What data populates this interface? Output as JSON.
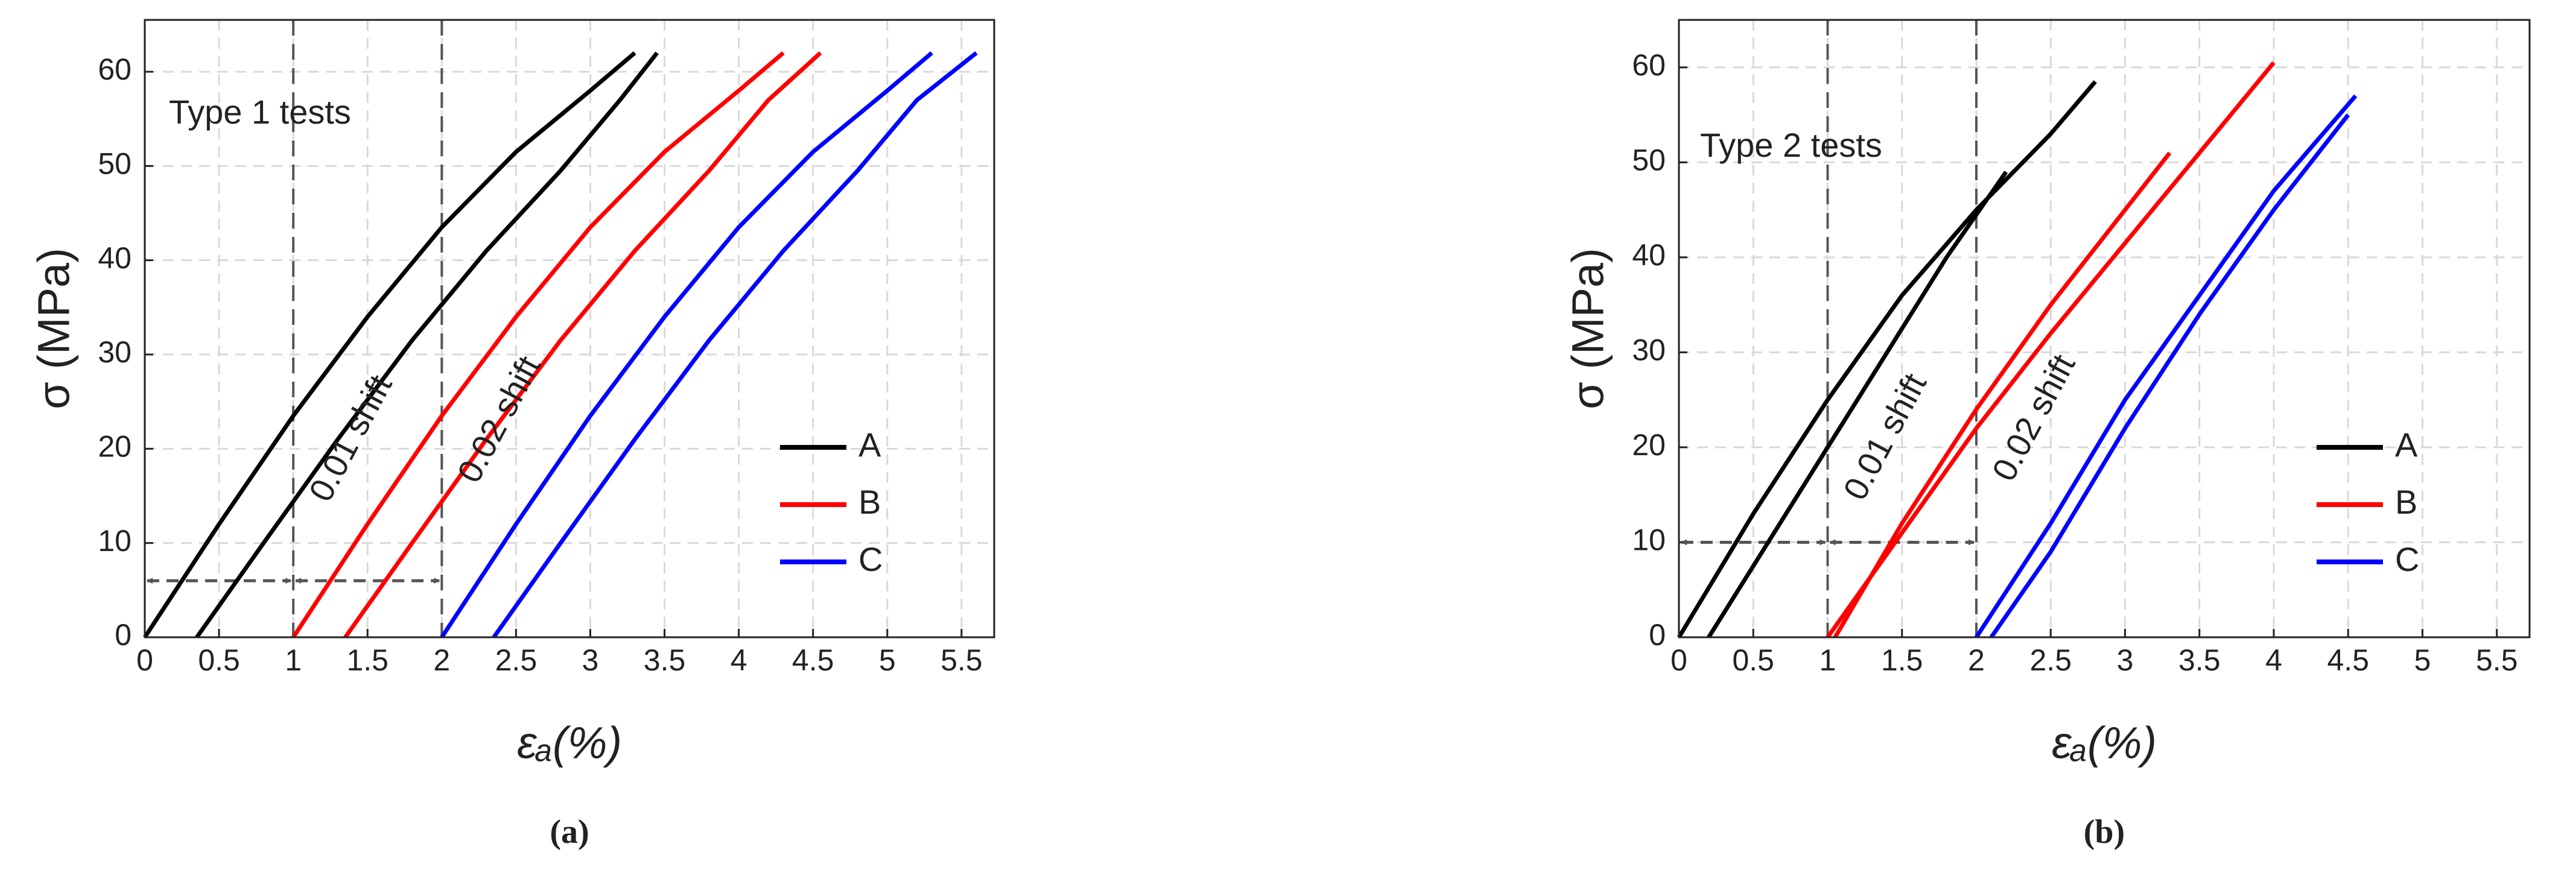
{
  "chart_data": [
    {
      "type": "line",
      "annotation": "Type 1 tests",
      "shift_labels": [
        "0.01 shift",
        "0.02 shift"
      ],
      "xlabel": "εₐ(%)",
      "ylabel": "σ (MPa)",
      "caption": "(a)",
      "xlim": [
        0,
        5.72
      ],
      "ylim": [
        0,
        65.5
      ],
      "xticks": [
        0,
        0.5,
        1,
        1.5,
        2,
        2.5,
        3,
        3.5,
        4,
        4.5,
        5,
        5.5
      ],
      "yticks": [
        0,
        10,
        20,
        30,
        40,
        50,
        60
      ],
      "grid": true,
      "vlines": [
        1,
        2
      ],
      "arrow_y": 6,
      "series": [
        {
          "name": "A",
          "color": "#000000",
          "x": [
            0,
            0.5,
            1,
            1.5,
            2,
            2.5,
            3,
            3.3,
            null,
            0.35,
            0.8,
            1.3,
            1.8,
            2.3,
            2.8,
            3.2,
            3.45
          ],
          "values": [
            0,
            12,
            23.5,
            34,
            43.5,
            51.5,
            58,
            62,
            null,
            0,
            10,
            21,
            31.5,
            41,
            49.5,
            57,
            62
          ]
        },
        {
          "name": "B",
          "color": "#ff0000",
          "x": [
            1,
            1.5,
            2,
            2.5,
            3,
            3.5,
            4,
            4.3,
            null,
            1.35,
            1.8,
            2.3,
            2.8,
            3.3,
            3.8,
            4.2,
            4.55
          ],
          "values": [
            0,
            12,
            23.5,
            34,
            43.5,
            51.5,
            58,
            62,
            null,
            0,
            10,
            21,
            31.5,
            41,
            49.5,
            57,
            62
          ]
        },
        {
          "name": "C",
          "color": "#0000ff",
          "x": [
            2,
            2.5,
            3,
            3.5,
            4,
            4.5,
            5,
            5.3,
            null,
            2.35,
            2.8,
            3.3,
            3.8,
            4.3,
            4.8,
            5.2,
            5.6
          ],
          "values": [
            0,
            12,
            23.5,
            34,
            43.5,
            51.5,
            58,
            62,
            null,
            0,
            10,
            21,
            31.5,
            41,
            49.5,
            57,
            62
          ]
        }
      ]
    },
    {
      "type": "line",
      "annotation": "Type 2 tests",
      "shift_labels": [
        "0.01 shift",
        "0.02 shift"
      ],
      "xlabel": "εₐ(%)",
      "ylabel": "σ (MPa)",
      "caption": "(b)",
      "xlim": [
        0,
        5.72
      ],
      "ylim": [
        0,
        65
      ],
      "xticks": [
        0,
        0.5,
        1,
        1.5,
        2,
        2.5,
        3,
        3.5,
        4,
        4.5,
        5,
        5.5
      ],
      "yticks": [
        0,
        10,
        20,
        30,
        40,
        50,
        60
      ],
      "grid": true,
      "vlines": [
        1,
        2
      ],
      "arrow_y": 10,
      "series": [
        {
          "name": "A",
          "color": "#000000",
          "x": [
            0,
            0.5,
            1,
            1.5,
            2,
            2.5,
            2.8,
            null,
            0.2,
            0.6,
            1.0,
            1.4,
            1.8,
            2.2
          ],
          "values": [
            0,
            13,
            25,
            36,
            45,
            53,
            58.5,
            null,
            0,
            10,
            20,
            30,
            40,
            49
          ]
        },
        {
          "name": "B",
          "color": "#ff0000",
          "x": [
            1,
            1.5,
            2,
            2.5,
            3,
            3.5,
            4,
            null,
            1.05,
            1.5,
            2,
            2.5,
            3,
            3.3
          ],
          "values": [
            0,
            11,
            22,
            32,
            41.5,
            51,
            60.5,
            null,
            0,
            12,
            24,
            35,
            45,
            51
          ]
        },
        {
          "name": "C",
          "color": "#0000ff",
          "x": [
            2,
            2.5,
            3,
            3.5,
            4,
            4.55,
            null,
            2.1,
            2.5,
            3,
            3.5,
            4,
            4.5
          ],
          "values": [
            0,
            12,
            25,
            36,
            47,
            57,
            null,
            0,
            9,
            22,
            34,
            45,
            55
          ]
        }
      ]
    }
  ]
}
